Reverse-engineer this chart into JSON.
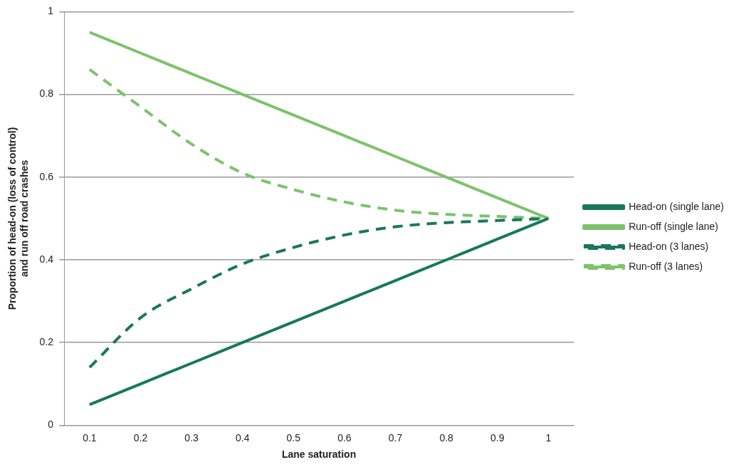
{
  "chart_data": {
    "type": "line",
    "xlabel": "Lane saturation",
    "ylabel": "Proportion of head-on (loss of control)\nand run off road crashes",
    "categories": [
      "0.1",
      "0.2",
      "0.3",
      "0.4",
      "0.5",
      "0.6",
      "0.7",
      "0.8",
      "0.9",
      "1"
    ],
    "series": [
      {
        "name": "Head-on (single lane)",
        "color": "#17785a",
        "line_style": "solid",
        "values": [
          0.05,
          0.1,
          0.15,
          0.2,
          0.25,
          0.3,
          0.35,
          0.4,
          0.45,
          0.5
        ]
      },
      {
        "name": "Run-off (single lane)",
        "color": "#7cc36a",
        "line_style": "solid",
        "values": [
          0.95,
          0.9,
          0.85,
          0.8,
          0.75,
          0.7,
          0.65,
          0.6,
          0.55,
          0.5
        ]
      },
      {
        "name": "Head-on (3 lanes)",
        "color": "#17785a",
        "line_style": "dashed",
        "values": [
          0.14,
          0.26,
          0.33,
          0.39,
          0.43,
          0.46,
          0.48,
          0.49,
          0.495,
          0.5
        ]
      },
      {
        "name": "Run-off (3 lanes)",
        "color": "#7cc36a",
        "line_style": "dashed",
        "values": [
          0.86,
          0.77,
          0.68,
          0.61,
          0.57,
          0.54,
          0.52,
          0.51,
          0.505,
          0.5
        ]
      }
    ],
    "ylim": [
      0,
      1
    ],
    "yticks": [
      0,
      0.2,
      0.4,
      0.6,
      0.8,
      1
    ],
    "grid": "y",
    "legend": "right",
    "marker": "none"
  }
}
